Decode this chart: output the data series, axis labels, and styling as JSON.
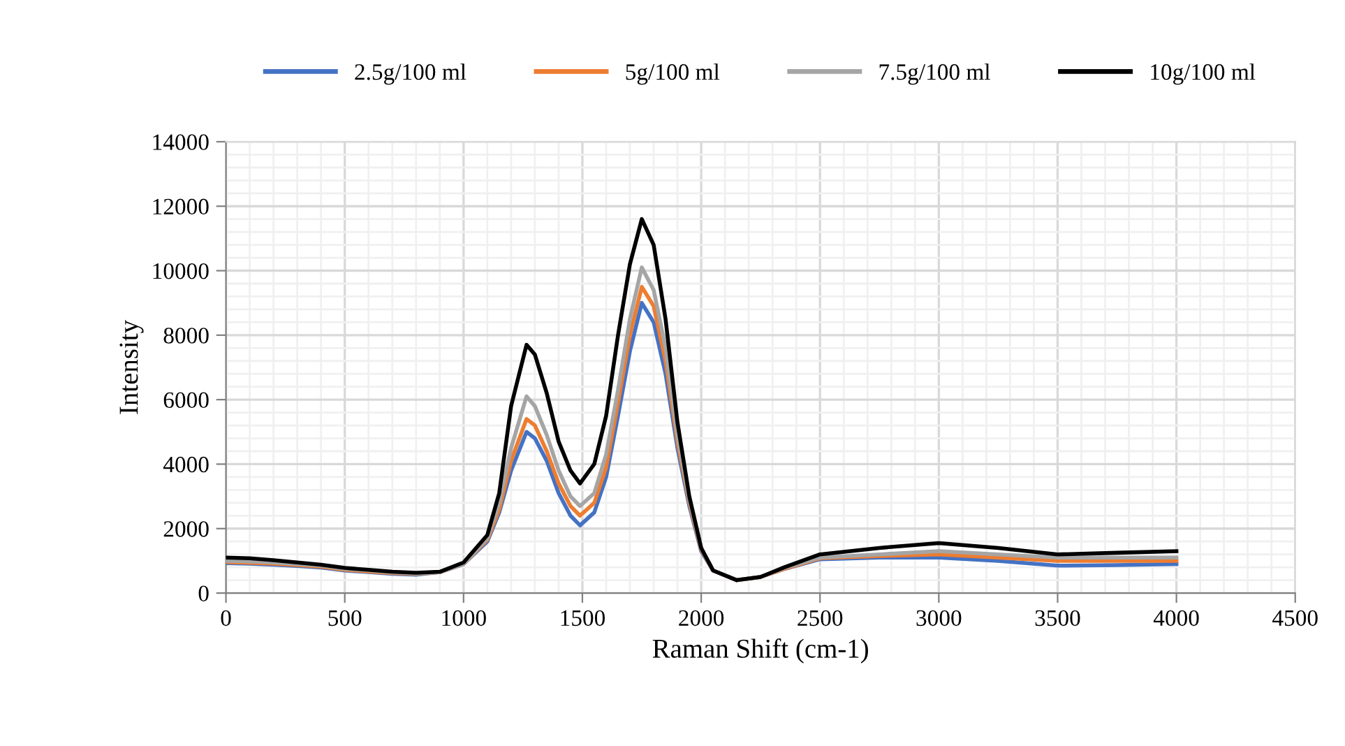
{
  "chart_data": {
    "type": "line",
    "xlabel": "Raman Shift (cm-1)",
    "ylabel": "Intensity",
    "x": [
      0,
      100,
      200,
      300,
      400,
      500,
      600,
      700,
      800,
      900,
      1000,
      1100,
      1150,
      1200,
      1265,
      1300,
      1350,
      1400,
      1450,
      1490,
      1550,
      1600,
      1650,
      1700,
      1750,
      1800,
      1850,
      1900,
      1950,
      2000,
      2050,
      2150,
      2250,
      2350,
      2500,
      2750,
      3000,
      3250,
      3500,
      3750,
      4000
    ],
    "series": [
      {
        "name": "2.5g/100 ml",
        "color": "#4472c4",
        "values": [
          930,
          910,
          880,
          840,
          790,
          700,
          650,
          600,
          570,
          650,
          900,
          1600,
          2500,
          3800,
          5000,
          4800,
          4100,
          3100,
          2400,
          2100,
          2500,
          3600,
          5500,
          7500,
          9000,
          8400,
          6800,
          4500,
          2700,
          1300,
          700,
          400,
          500,
          750,
          1050,
          1100,
          1100,
          1000,
          850,
          870,
          900
        ]
      },
      {
        "name": "5g/100 ml",
        "color": "#ed7d31",
        "values": [
          960,
          940,
          910,
          870,
          820,
          720,
          670,
          620,
          590,
          650,
          900,
          1650,
          2600,
          4100,
          5400,
          5200,
          4400,
          3400,
          2700,
          2400,
          2800,
          3900,
          5900,
          8000,
          9500,
          8900,
          7200,
          4700,
          2800,
          1350,
          700,
          400,
          500,
          750,
          1080,
          1150,
          1200,
          1100,
          1000,
          1000,
          1000
        ]
      },
      {
        "name": "7.5g/100 ml",
        "color": "#a5a5a5",
        "values": [
          1000,
          980,
          950,
          900,
          850,
          750,
          700,
          640,
          605,
          650,
          900,
          1700,
          2800,
          4500,
          6100,
          5800,
          4900,
          3800,
          3000,
          2700,
          3100,
          4300,
          6300,
          8500,
          10100,
          9400,
          7600,
          4900,
          2900,
          1400,
          700,
          400,
          500,
          780,
          1100,
          1200,
          1300,
          1200,
          1100,
          1100,
          1100
        ]
      },
      {
        "name": "10g/100 ml",
        "color": "#000000",
        "values": [
          1100,
          1080,
          1020,
          950,
          880,
          780,
          720,
          660,
          630,
          660,
          950,
          1800,
          3100,
          5800,
          7700,
          7400,
          6200,
          4700,
          3800,
          3400,
          4000,
          5500,
          8000,
          10200,
          11600,
          10800,
          8500,
          5300,
          3000,
          1400,
          700,
          400,
          500,
          800,
          1200,
          1400,
          1550,
          1400,
          1200,
          1250,
          1300
        ]
      }
    ],
    "xlim": [
      0,
      4500
    ],
    "xticks": [
      0,
      500,
      1000,
      1500,
      2000,
      2500,
      3000,
      3500,
      4000,
      4500
    ],
    "ylim": [
      0,
      14000
    ],
    "yticks": [
      0,
      2000,
      4000,
      6000,
      8000,
      10000,
      12000,
      14000
    ],
    "grid": true,
    "legend": "top",
    "marker": "none",
    "line_style": "solid"
  }
}
